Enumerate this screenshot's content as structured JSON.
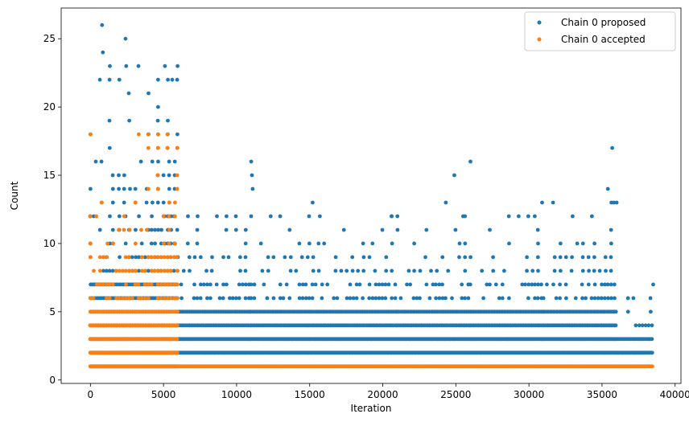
{
  "chart_data": {
    "type": "scatter",
    "title": "",
    "xlabel": "Iteration",
    "ylabel": "Count",
    "xlim": [
      -2000,
      40400
    ],
    "ylim": [
      -0.25,
      27.25
    ],
    "xticks": [
      0,
      5000,
      10000,
      15000,
      20000,
      25000,
      30000,
      35000,
      40000
    ],
    "yticks": [
      0,
      5,
      10,
      15,
      20,
      25
    ],
    "grid": false,
    "legend": "top-right",
    "series": [
      {
        "name": "Chain 0 proposed",
        "color": "#1f77b4",
        "segments": [
          {
            "x_range": [
              0,
              6000
            ],
            "y_levels": [
              1,
              2,
              3,
              4,
              5,
              6,
              7,
              8,
              9,
              10,
              11,
              12,
              13,
              14,
              15,
              16,
              17,
              18,
              19,
              20,
              21,
              22,
              23
            ]
          },
          {
            "x_range": [
              6000,
              11000
            ],
            "y_levels": [
              2,
              3,
              4,
              5,
              6,
              7,
              8,
              9,
              10,
              11,
              12
            ]
          },
          {
            "x_range": [
              11000,
              16000
            ],
            "y_levels": [
              2,
              3,
              4,
              5,
              6,
              7,
              8,
              9,
              10,
              11,
              12
            ]
          },
          {
            "x_range": [
              16000,
              21000
            ],
            "y_levels": [
              2,
              3,
              4,
              5,
              6,
              7,
              8,
              9,
              10,
              11,
              12
            ]
          },
          {
            "x_range": [
              21000,
              26000
            ],
            "y_levels": [
              2,
              3,
              4,
              5,
              6,
              7,
              8,
              9,
              10,
              11,
              12,
              13
            ]
          },
          {
            "x_range": [
              26000,
              31000
            ],
            "y_levels": [
              2,
              3,
              4,
              5,
              6,
              7,
              8,
              9,
              10,
              11,
              12
            ]
          },
          {
            "x_range": [
              31000,
              36000
            ],
            "y_levels": [
              2,
              3,
              4,
              5,
              6,
              7,
              8,
              9,
              10,
              11,
              12,
              13
            ]
          },
          {
            "x_range": [
              36000,
              38500
            ],
            "y_levels": [
              2,
              3,
              4,
              5,
              6,
              7
            ]
          }
        ],
        "peaks": [
          [
            800,
            26
          ],
          [
            850,
            24
          ],
          [
            2400,
            25
          ],
          [
            2450,
            23
          ],
          [
            5100,
            23
          ],
          [
            5300,
            22
          ],
          [
            5600,
            22
          ],
          [
            11000,
            16
          ],
          [
            11050,
            15
          ],
          [
            11100,
            14
          ],
          [
            15200,
            13
          ],
          [
            15700,
            12
          ],
          [
            20600,
            12
          ],
          [
            21000,
            12
          ],
          [
            24900,
            15
          ],
          [
            26000,
            16
          ],
          [
            25500,
            12
          ],
          [
            30900,
            13
          ],
          [
            30400,
            12
          ],
          [
            35700,
            17
          ],
          [
            35400,
            14
          ],
          [
            35800,
            13
          ],
          [
            36000,
            13
          ],
          [
            38500,
            7
          ]
        ]
      },
      {
        "name": "Chain 0 accepted",
        "color": "#ff7f0e",
        "segments": [
          {
            "x_range": [
              0,
              6000
            ],
            "y_levels": [
              1,
              2,
              3,
              4,
              5,
              6,
              7,
              8,
              9,
              10,
              11,
              12,
              13,
              14,
              15,
              16,
              17,
              18
            ]
          },
          {
            "x_range": [
              6000,
              38500
            ],
            "y_levels": [
              1
            ]
          }
        ]
      }
    ]
  }
}
